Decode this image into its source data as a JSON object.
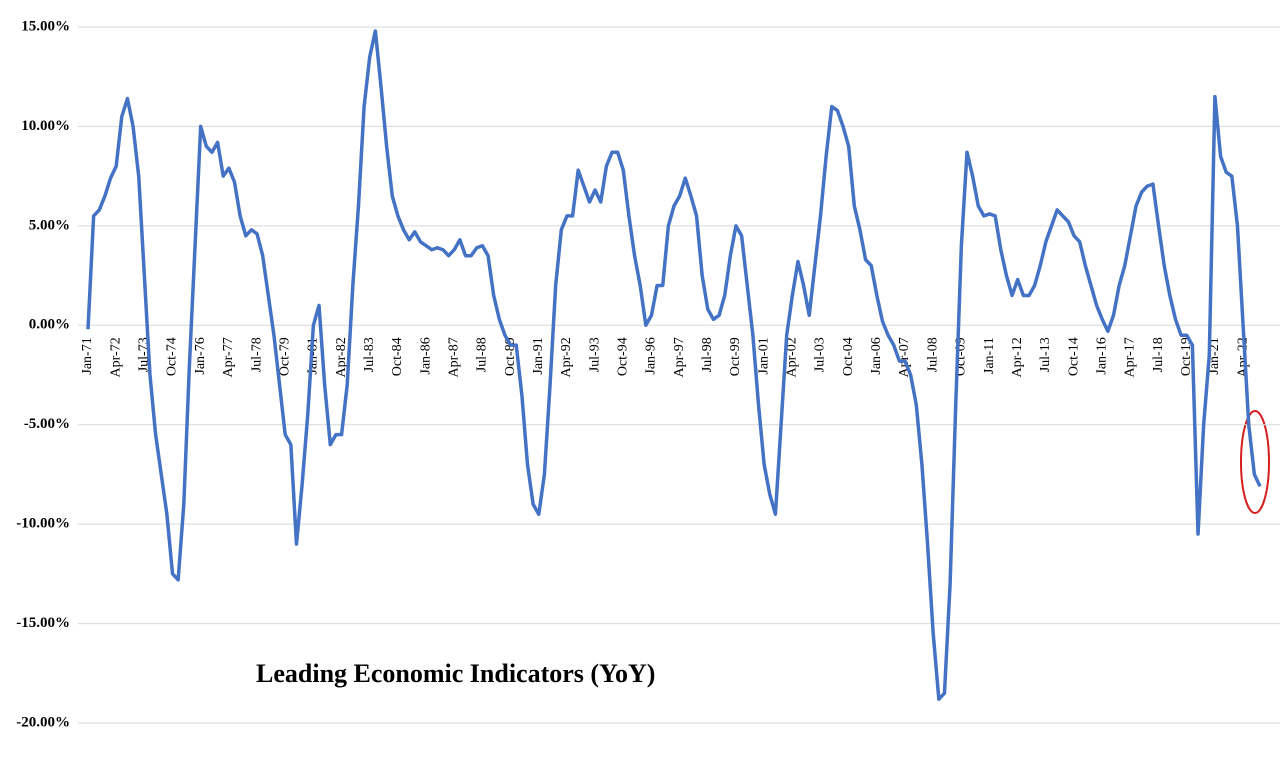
{
  "chart_data": {
    "type": "line",
    "title": "Leading Economic Indicators (YoY)",
    "categories": [
      "Jan-71",
      null,
      null,
      null,
      null,
      "Apr-72",
      null,
      null,
      null,
      null,
      "Jul-73",
      null,
      null,
      null,
      null,
      "Oct-74",
      null,
      null,
      null,
      null,
      "Jan-76",
      null,
      null,
      null,
      null,
      "Apr-77",
      null,
      null,
      null,
      null,
      "Jul-78",
      null,
      null,
      null,
      null,
      "Oct-79",
      null,
      null,
      null,
      null,
      "Jan-81",
      null,
      null,
      null,
      null,
      "Apr-82",
      null,
      null,
      null,
      null,
      "Jul-83",
      null,
      null,
      null,
      null,
      "Oct-84",
      null,
      null,
      null,
      null,
      "Jan-86",
      null,
      null,
      null,
      null,
      "Apr-87",
      null,
      null,
      null,
      null,
      "Jul-88",
      null,
      null,
      null,
      null,
      "Oct-89",
      null,
      null,
      null,
      null,
      "Jan-91",
      null,
      null,
      null,
      null,
      "Apr-92",
      null,
      null,
      null,
      null,
      "Jul-93",
      null,
      null,
      null,
      null,
      "Oct-94",
      null,
      null,
      null,
      null,
      "Jan-96",
      null,
      null,
      null,
      null,
      "Apr-97",
      null,
      null,
      null,
      null,
      "Jul-98",
      null,
      null,
      null,
      null,
      "Oct-99",
      null,
      null,
      null,
      null,
      "Jan-01",
      null,
      null,
      null,
      null,
      "Apr-02",
      null,
      null,
      null,
      null,
      "Jul-03",
      null,
      null,
      null,
      null,
      "Oct-04",
      null,
      null,
      null,
      null,
      "Jan-06",
      null,
      null,
      null,
      null,
      "Apr-07",
      null,
      null,
      null,
      null,
      "Jul-08",
      null,
      null,
      null,
      null,
      "Oct-09",
      null,
      null,
      null,
      null,
      "Jan-11",
      null,
      null,
      null,
      null,
      "Apr-12",
      null,
      null,
      null,
      null,
      "Jul-13",
      null,
      null,
      null,
      null,
      "Oct-14",
      null,
      null,
      null,
      null,
      "Jan-16",
      null,
      null,
      null,
      null,
      "Apr-17",
      null,
      null,
      null,
      null,
      "Jul-18",
      null,
      null,
      null,
      null,
      "Oct-19",
      null,
      null,
      null,
      null,
      "Jan-21",
      null,
      null,
      null,
      null,
      "Apr-22",
      null,
      null,
      null
    ],
    "values": [
      -0.2,
      5.5,
      5.8,
      6.5,
      7.4,
      8,
      10.5,
      11.4,
      10,
      7.5,
      2.5,
      -2.5,
      -5.5,
      -7.5,
      -9.5,
      -12.5,
      -12.8,
      -9,
      -2,
      4,
      10,
      9,
      8.7,
      9.2,
      7.5,
      7.9,
      7.2,
      5.5,
      4.5,
      4.8,
      4.6,
      3.5,
      1.5,
      -0.5,
      -3,
      -5.5,
      -6,
      -11,
      -8,
      -4.5,
      0,
      1,
      -3,
      -6,
      -5.5,
      -5.5,
      -3,
      2,
      6,
      11,
      13.5,
      14.8,
      12,
      9,
      6.5,
      5.5,
      4.8,
      4.3,
      4.7,
      4.2,
      4,
      3.8,
      3.9,
      3.8,
      3.5,
      3.8,
      4.3,
      3.5,
      3.5,
      3.9,
      4,
      3.5,
      1.5,
      0.3,
      -0.5,
      -1,
      -1,
      -3.5,
      -7,
      -9,
      -9.5,
      -7.5,
      -3,
      2,
      4.8,
      5.5,
      5.5,
      7.8,
      7,
      6.2,
      6.8,
      6.2,
      8,
      8.7,
      8.7,
      7.8,
      5.5,
      3.5,
      2,
      0,
      0.5,
      2,
      2,
      5,
      6,
      6.5,
      7.4,
      6.5,
      5.5,
      2.5,
      0.8,
      0.3,
      0.5,
      1.5,
      3.5,
      5,
      4.5,
      2,
      -0.5,
      -4,
      -7,
      -8.5,
      -9.5,
      -5,
      -0.5,
      1.5,
      3.2,
      2,
      0.5,
      3,
      5.5,
      8.5,
      11,
      10.8,
      10,
      9,
      6,
      4.8,
      3.3,
      3,
      1.5,
      0.2,
      -0.5,
      -1,
      -1.8,
      -1.8,
      -2.5,
      -4,
      -7,
      -11,
      -15.5,
      -18.8,
      -18.5,
      -13,
      -4,
      4,
      8.7,
      7.5,
      6,
      5.5,
      5.6,
      5.5,
      3.8,
      2.5,
      1.5,
      2.3,
      1.5,
      1.5,
      2,
      3,
      4.2,
      5,
      5.8,
      5.5,
      5.2,
      4.5,
      4.2,
      3,
      2,
      1,
      0.3,
      -0.3,
      0.5,
      2,
      3,
      4.5,
      6,
      6.7,
      7,
      7.1,
      5,
      3,
      1.5,
      0.3,
      -0.5,
      -0.5,
      -1,
      -10.5,
      -5,
      -1.5,
      11.5,
      8.5,
      7.7,
      7.5,
      5,
      0,
      -5,
      -7.5,
      -8.1
    ],
    "color": "#4472c4",
    "ylim": [
      -20,
      15
    ],
    "yticks": [
      {
        "value": -20,
        "label": "-20.00%"
      },
      {
        "value": -15,
        "label": "-15.00%"
      },
      {
        "value": -10,
        "label": "-10.00%"
      },
      {
        "value": -5,
        "label": "-5.00%"
      },
      {
        "value": 0,
        "label": "0.00%"
      },
      {
        "value": 5,
        "label": "5.00%"
      },
      {
        "value": 10,
        "label": "10.00%"
      },
      {
        "value": 15,
        "label": "15.00%"
      }
    ],
    "grid": true
  }
}
